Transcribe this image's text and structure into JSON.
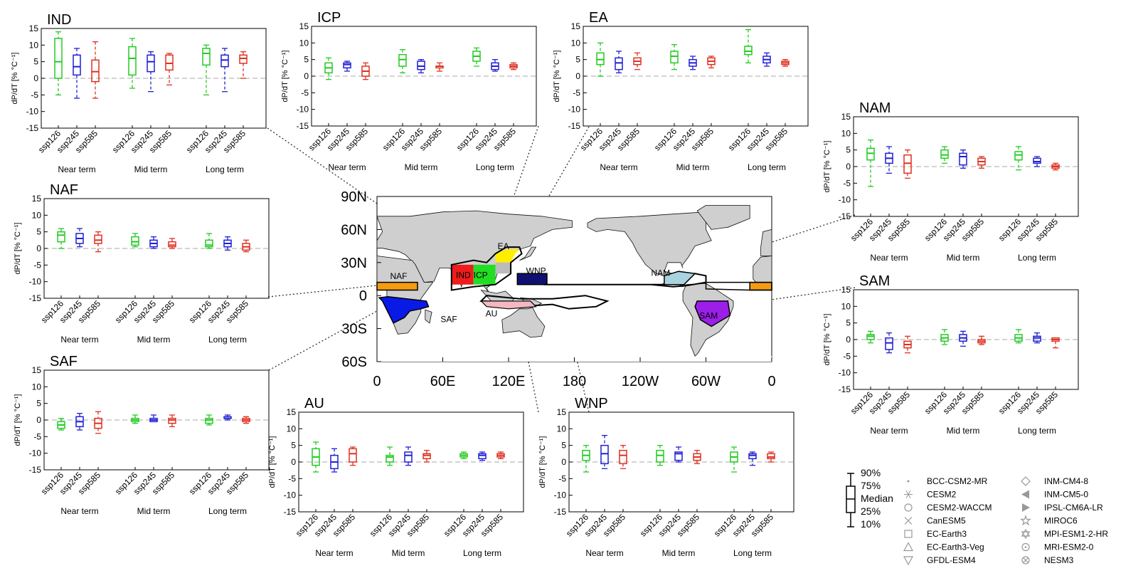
{
  "chart_data": {
    "type": "box",
    "ylabel": "dP/dT [% °C⁻¹]",
    "ylim": [
      -15,
      15
    ],
    "yticks": [
      15,
      10,
      5,
      0,
      -5,
      -10,
      -15
    ],
    "scenarios": [
      "ssp126",
      "ssp245",
      "ssp585"
    ],
    "terms": [
      "Near term",
      "Mid term",
      "Long term"
    ],
    "scenario_colors": {
      "ssp126": "#22cc22",
      "ssp245": "#1f1fd6",
      "ssp585": "#e0301e"
    },
    "panels": [
      {
        "name": "IND",
        "box_format": "[p10, p25, median, p75, p90] per scenario",
        "boxes": [
          [
            [
              -5,
              0,
              5,
              12,
              14
            ],
            [
              -6,
              1,
              3.5,
              7,
              9
            ],
            [
              -6,
              -1,
              2,
              5.5,
              11
            ]
          ],
          [
            [
              -3,
              1,
              6,
              9.5,
              12
            ],
            [
              -4,
              2,
              5,
              7,
              8
            ],
            [
              -2,
              2.5,
              4.5,
              7,
              7.5
            ]
          ],
          [
            [
              -5,
              4,
              7.5,
              9,
              10
            ],
            [
              -4,
              3.5,
              5.5,
              7,
              9
            ],
            [
              0,
              4.5,
              6,
              7,
              8
            ]
          ]
        ]
      },
      {
        "name": "ICP",
        "boxes": [
          [
            [
              -1,
              1,
              2.5,
              4,
              5.5
            ],
            [
              1.5,
              2.5,
              3.5,
              4,
              4.5
            ],
            [
              -1,
              0,
              1.5,
              3,
              4
            ]
          ],
          [
            [
              1,
              3,
              5,
              6.5,
              8
            ],
            [
              1,
              2,
              3,
              4.5,
              5
            ],
            [
              1.5,
              2.5,
              3,
              3,
              4
            ]
          ],
          [
            [
              3,
              4.5,
              6,
              7.5,
              8.5
            ],
            [
              1.5,
              2,
              3,
              4,
              5
            ],
            [
              2,
              2.5,
              3,
              3.5,
              4
            ]
          ]
        ]
      },
      {
        "name": "EA",
        "boxes": [
          [
            [
              0,
              3.5,
              5,
              7,
              10
            ],
            [
              1,
              2,
              4,
              5.5,
              7.5
            ],
            [
              2,
              3.5,
              4.5,
              5.5,
              7
            ]
          ],
          [
            [
              2,
              4,
              6,
              7.5,
              9.5
            ],
            [
              2,
              3,
              4,
              5,
              6
            ],
            [
              2.5,
              3.5,
              4.5,
              5.5,
              6
            ]
          ],
          [
            [
              4,
              6.5,
              7.5,
              9,
              14
            ],
            [
              3,
              4,
              5,
              6,
              7
            ],
            [
              3,
              3.5,
              4,
              4.5,
              5
            ]
          ]
        ]
      },
      {
        "name": "NAM",
        "boxes": [
          [
            [
              -6,
              2,
              4,
              5.5,
              8
            ],
            [
              -2,
              1,
              2.5,
              4,
              6
            ],
            [
              -3.5,
              -2,
              1,
              3.5,
              5
            ]
          ],
          [
            [
              1,
              2.5,
              3.5,
              5,
              6
            ],
            [
              -0.5,
              0.5,
              3,
              4,
              5
            ],
            [
              -0.5,
              0.5,
              1.5,
              2.5,
              3
            ]
          ],
          [
            [
              -1,
              2,
              3.5,
              4.5,
              6
            ],
            [
              0,
              1,
              1.5,
              2.5,
              3
            ],
            [
              -1,
              -0.5,
              0,
              0.5,
              1
            ]
          ]
        ]
      },
      {
        "name": "NAF",
        "boxes": [
          [
            [
              0,
              2,
              4,
              5,
              6
            ],
            [
              0.5,
              1.5,
              3,
              4.5,
              6
            ],
            [
              -1,
              1.5,
              2.5,
              4,
              5
            ]
          ],
          [
            [
              0.5,
              1,
              2,
              3.5,
              4.5
            ],
            [
              0,
              0.5,
              1.5,
              2.5,
              3.5
            ],
            [
              0,
              0.5,
              1,
              2,
              3
            ]
          ],
          [
            [
              0,
              0.5,
              1,
              2.5,
              4.5
            ],
            [
              -0.5,
              0.5,
              1.5,
              2.5,
              3.5
            ],
            [
              -1,
              -0.5,
              0.5,
              1.5,
              2.5
            ]
          ]
        ]
      },
      {
        "name": "SAM",
        "boxes": [
          [
            [
              -1,
              0,
              1,
              1.5,
              2.5
            ],
            [
              -4,
              -3,
              -1,
              0.5,
              2
            ],
            [
              -4,
              -2.5,
              -1.5,
              -0.5,
              1
            ]
          ],
          [
            [
              -1.5,
              -0.5,
              0.5,
              1.5,
              3
            ],
            [
              -2,
              -0.5,
              0.5,
              1.5,
              2.5
            ],
            [
              -1.5,
              -1,
              -0.5,
              0,
              1
            ]
          ],
          [
            [
              -1,
              -0.5,
              0.5,
              1.5,
              3
            ],
            [
              -1,
              -0.5,
              0.5,
              1,
              2
            ],
            [
              -2.5,
              -0.5,
              0,
              0.5,
              0.5
            ]
          ]
        ]
      },
      {
        "name": "SAF",
        "boxes": [
          [
            [
              -3,
              -2.5,
              -1.5,
              -0.5,
              0.5
            ],
            [
              -3,
              -2,
              -0.5,
              1,
              2
            ],
            [
              -4,
              -2.5,
              -1,
              0.5,
              2.5
            ]
          ],
          [
            [
              -1,
              -0.5,
              0,
              0.5,
              1.5
            ],
            [
              -0.5,
              -0.5,
              0,
              0.5,
              1.5
            ],
            [
              -2,
              -1,
              0,
              0.5,
              1.5
            ]
          ],
          [
            [
              -1.5,
              -1,
              0,
              0.5,
              1.5
            ],
            [
              0,
              0.5,
              0.5,
              1,
              1.5
            ],
            [
              -1,
              -0.5,
              0,
              0.5,
              1
            ]
          ]
        ]
      },
      {
        "name": "AU",
        "boxes": [
          [
            [
              -3,
              -1,
              1.5,
              4,
              6
            ],
            [
              -3,
              -2,
              0,
              2,
              4
            ],
            [
              -1,
              0,
              2.5,
              4,
              4.5
            ]
          ],
          [
            [
              -1,
              0,
              1.5,
              2,
              4.5
            ],
            [
              -1,
              0,
              2,
              3,
              4.5
            ],
            [
              0,
              1,
              2,
              2.5,
              3.5
            ]
          ],
          [
            [
              1,
              1.5,
              2,
              2.5,
              3
            ],
            [
              0.5,
              1,
              2,
              2.5,
              3
            ],
            [
              1,
              1.5,
              2,
              2.5,
              3
            ]
          ]
        ]
      },
      {
        "name": "WNP",
        "boxes": [
          [
            [
              -3,
              0.5,
              2,
              3.5,
              5
            ],
            [
              -2,
              -0.5,
              2.5,
              5,
              8
            ],
            [
              -2,
              -0.5,
              2,
              3.5,
              5
            ]
          ],
          [
            [
              -1,
              0,
              2,
              3.5,
              5
            ],
            [
              0,
              0.5,
              2.5,
              3,
              4.5
            ],
            [
              -0.5,
              0.5,
              1.5,
              2.5,
              3.5
            ]
          ],
          [
            [
              -3,
              0,
              1.5,
              3,
              4.5
            ],
            [
              -1,
              1,
              2,
              2.5,
              3
            ],
            [
              0,
              1,
              1.5,
              2.5,
              3
            ]
          ]
        ]
      }
    ]
  },
  "map": {
    "lat_labels": [
      "90N",
      "60N",
      "30N",
      "0",
      "30S",
      "60S"
    ],
    "lon_labels": [
      "0",
      "60E",
      "120E",
      "180",
      "120W",
      "60W",
      "0"
    ],
    "regions": [
      {
        "label": "NAF",
        "color": "#f39c12"
      },
      {
        "label": "IND",
        "color": "#ee1c1c"
      },
      {
        "label": "ICP",
        "color": "#22dd22"
      },
      {
        "label": "EA",
        "color": "#ffee00"
      },
      {
        "label": "WNP",
        "color": "#101070"
      },
      {
        "label": "NAM",
        "color": "#aad3e0"
      },
      {
        "label": "SAF",
        "color": "#0a1ae6"
      },
      {
        "label": "AU",
        "color": "#f4b8c0"
      },
      {
        "label": "SAM",
        "color": "#9b1fe8"
      }
    ]
  },
  "legend": {
    "box": [
      "90%",
      "75%",
      "Median",
      "25%",
      "10%"
    ],
    "models": [
      {
        "name": "BCC-CSM2-MR",
        "marker": "dot"
      },
      {
        "name": "CESM2",
        "marker": "asterisk"
      },
      {
        "name": "CESM2-WACCM",
        "marker": "circle"
      },
      {
        "name": "CanESM5",
        "marker": "cross"
      },
      {
        "name": "EC-Earth3",
        "marker": "square"
      },
      {
        "name": "EC-Earth3-Veg",
        "marker": "triangle-up"
      },
      {
        "name": "GFDL-ESM4",
        "marker": "triangle-down"
      },
      {
        "name": "INM-CM4-8",
        "marker": "diamond"
      },
      {
        "name": "INM-CM5-0",
        "marker": "triangle-left-filled"
      },
      {
        "name": "IPSL-CM6A-LR",
        "marker": "triangle-right-filled"
      },
      {
        "name": "MIROC6",
        "marker": "star"
      },
      {
        "name": "MPI-ESM1-2-HR",
        "marker": "hexagram"
      },
      {
        "name": "MRI-ESM2-0",
        "marker": "circle-dot"
      },
      {
        "name": "NESM3",
        "marker": "circle-cross"
      }
    ]
  }
}
